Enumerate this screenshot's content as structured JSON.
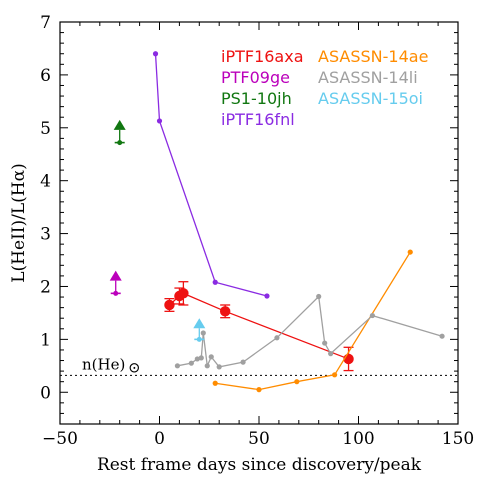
{
  "chart_data": {
    "type": "scatter",
    "xlabel": "Rest frame days since discovery/peak",
    "ylabel": "L(HeII)/L(Hα)",
    "xlim": [
      -50,
      150
    ],
    "ylim": [
      -0.6,
      7
    ],
    "x_ticks": [
      -50,
      0,
      50,
      100,
      150
    ],
    "y_ticks": [
      0,
      1,
      2,
      3,
      4,
      5,
      6,
      7
    ],
    "grid": false,
    "legend_position": "top-right",
    "series": [
      {
        "name": "iPTF16axa",
        "color": "#ee1111",
        "style": "points-errorbars",
        "points": [
          {
            "x": 5,
            "y": 1.65,
            "err": 0.12
          },
          {
            "x": 10,
            "y": 1.82,
            "err": 0.15
          },
          {
            "x": 12,
            "y": 1.87,
            "err": 0.22
          },
          {
            "x": 33,
            "y": 1.53,
            "err": 0.12
          },
          {
            "x": 95,
            "y": 0.63,
            "err": 0.22
          }
        ]
      },
      {
        "name": "PTF09ge",
        "color": "#bb00bb",
        "style": "lower-limit",
        "points": [
          {
            "x": -22,
            "y": 1.87,
            "limit_to": 2.3
          }
        ]
      },
      {
        "name": "PS1-10jh",
        "color": "#117711",
        "style": "lower-limit",
        "points": [
          {
            "x": -20,
            "y": 4.72,
            "limit_to": 5.15
          }
        ]
      },
      {
        "name": "iPTF16fnl",
        "color": "#8a2be2",
        "style": "line-markers",
        "points": [
          {
            "x": -2,
            "y": 6.4
          },
          {
            "x": 0,
            "y": 5.13
          },
          {
            "x": 28,
            "y": 2.08
          },
          {
            "x": 54,
            "y": 1.82
          }
        ]
      },
      {
        "name": "ASASSN-14ae",
        "color": "#ff8c00",
        "style": "line-markers",
        "points": [
          {
            "x": 28,
            "y": 0.17
          },
          {
            "x": 50,
            "y": 0.05
          },
          {
            "x": 69,
            "y": 0.2
          },
          {
            "x": 88,
            "y": 0.33
          },
          {
            "x": 126,
            "y": 2.65
          }
        ]
      },
      {
        "name": "ASASSN-14li",
        "color": "#a0a0a0",
        "style": "line-markers",
        "points": [
          {
            "x": 9,
            "y": 0.5
          },
          {
            "x": 16,
            "y": 0.55
          },
          {
            "x": 19,
            "y": 0.63
          },
          {
            "x": 21,
            "y": 0.65
          },
          {
            "x": 22,
            "y": 1.12
          },
          {
            "x": 24,
            "y": 0.5
          },
          {
            "x": 26,
            "y": 0.67
          },
          {
            "x": 30,
            "y": 0.48
          },
          {
            "x": 42,
            "y": 0.57
          },
          {
            "x": 59,
            "y": 1.03
          },
          {
            "x": 80,
            "y": 1.81
          },
          {
            "x": 83,
            "y": 0.93
          },
          {
            "x": 86,
            "y": 0.73
          },
          {
            "x": 107,
            "y": 1.45
          },
          {
            "x": 142,
            "y": 1.06
          }
        ]
      },
      {
        "name": "ASASSN-15oi",
        "color": "#66ccee",
        "style": "lower-limit",
        "points": [
          {
            "x": 20,
            "y": 1.0,
            "limit_to": 1.4
          }
        ]
      }
    ],
    "legend": [
      {
        "label": "iPTF16axa",
        "color": "#ee1111"
      },
      {
        "label": "PTF09ge",
        "color": "#bb00bb"
      },
      {
        "label": "PS1-10jh",
        "color": "#117711"
      },
      {
        "label": "iPTF16fnl",
        "color": "#8a2be2"
      },
      {
        "label": "ASASSN-14ae",
        "color": "#ff8c00"
      },
      {
        "label": "ASASSN-14li",
        "color": "#a0a0a0"
      },
      {
        "label": "ASASSN-15oi",
        "color": "#66ccee"
      }
    ],
    "reference_line": {
      "label": "n(He)",
      "symbol": "⊙",
      "y": 0.32,
      "style": "dotted"
    }
  }
}
